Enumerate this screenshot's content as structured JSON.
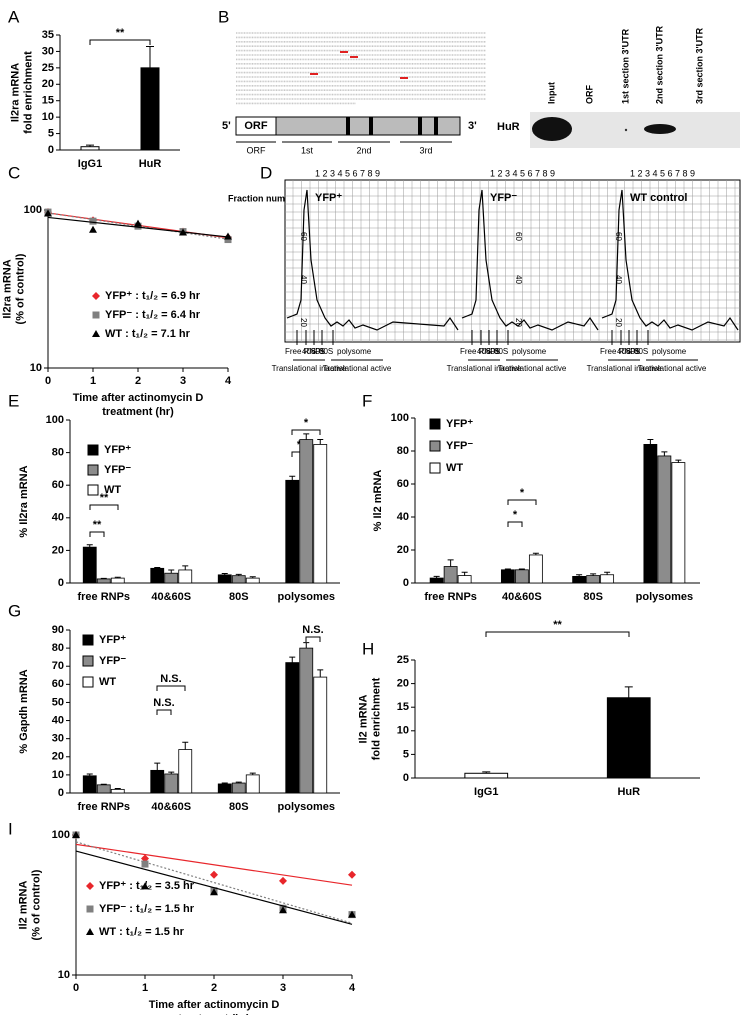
{
  "chart_data": [
    {
      "panel": "A",
      "type": "bar",
      "categories": [
        "IgG1",
        "HuR"
      ],
      "values": [
        1,
        25
      ],
      "errors": [
        0.5,
        6.5
      ],
      "colors": [
        "#ffffff",
        "#000000"
      ],
      "ylabel": [
        "Il2ra mRNA",
        "fold enrichment"
      ],
      "ylim": [
        0,
        35
      ],
      "yticks": [
        0,
        5,
        10,
        15,
        20,
        25,
        30,
        35
      ],
      "annotations": [
        "**"
      ]
    },
    {
      "panel": "C",
      "type": "scatter",
      "log_y": true,
      "trendline": true,
      "x": [
        0,
        1,
        2,
        3,
        4
      ],
      "series": [
        {
          "name": "YFP⁺ : t₁/₂ = 6.9 hr",
          "color": "#e8262b",
          "marker": "diamond",
          "values": [
            97,
            86,
            80,
            73,
            67
          ]
        },
        {
          "name": "YFP⁻ : t₁/₂ = 6.4  hr",
          "color": "#808080",
          "marker": "square",
          "values": [
            97,
            85,
            79,
            73,
            65
          ]
        },
        {
          "name": "WT : t₁/₂ = 7.1 hr",
          "color": "#000000",
          "marker": "triangle",
          "values": [
            95,
            75,
            82,
            72,
            68
          ]
        }
      ],
      "xlim": [
        0,
        4
      ],
      "xticks": [
        0,
        1,
        2,
        3,
        4
      ],
      "ylim": [
        10,
        100
      ],
      "yticks": [
        10,
        100
      ],
      "ylabel": [
        "Il2ra mRNA",
        "(% of control)"
      ],
      "xlabel": [
        "Time after actinomycin D",
        "treatment (hr)"
      ]
    },
    {
      "panel": "E",
      "type": "bar",
      "categories": [
        "free RNPs",
        "40&60S",
        "80S",
        "polysomes"
      ],
      "series": [
        {
          "name": "YFP⁺",
          "color": "#000000",
          "values": [
            22,
            9,
            5,
            63
          ],
          "errors": [
            1.5,
            0.5,
            0.8,
            2.5
          ]
        },
        {
          "name": "YFP⁻",
          "color": "#8c8c8c",
          "values": [
            2.5,
            6,
            4.5,
            88
          ],
          "errors": [
            0.3,
            2,
            0.8,
            3.5
          ]
        },
        {
          "name": "WT",
          "color": "#ffffff",
          "values": [
            3,
            8,
            3,
            85
          ],
          "errors": [
            0.5,
            2.5,
            0.8,
            3
          ]
        }
      ],
      "ylabel": [
        "% Il2ra mRNA"
      ],
      "ylim": [
        0,
        100
      ],
      "yticks": [
        0,
        20,
        40,
        60,
        80,
        100
      ],
      "annotations": [
        "**",
        "**",
        "*",
        "*"
      ]
    },
    {
      "panel": "F",
      "type": "bar",
      "categories": [
        "free RNPs",
        "40&60S",
        "80S",
        "polysomes"
      ],
      "series": [
        {
          "name": "YFP⁺",
          "color": "#000000",
          "values": [
            3,
            8,
            4,
            84
          ],
          "errors": [
            1,
            0.5,
            1,
            3
          ]
        },
        {
          "name": "YFP⁻",
          "color": "#8c8c8c",
          "values": [
            10,
            8,
            4.5,
            77
          ],
          "errors": [
            4,
            0.5,
            1,
            2.5
          ]
        },
        {
          "name": "WT",
          "color": "#ffffff",
          "values": [
            4.5,
            17,
            5,
            73
          ],
          "errors": [
            2,
            1,
            1.5,
            1.5
          ]
        }
      ],
      "ylabel": [
        "% Il2 mRNA"
      ],
      "ylim": [
        0,
        100
      ],
      "yticks": [
        0,
        20,
        40,
        60,
        80,
        100
      ],
      "annotations": [
        "*",
        "*"
      ]
    },
    {
      "panel": "G",
      "type": "bar",
      "categories": [
        "free RNPs",
        "40&60S",
        "80S",
        "polysomes"
      ],
      "series": [
        {
          "name": "YFP⁺",
          "color": "#000000",
          "values": [
            9.5,
            12.5,
            5,
            72
          ],
          "errors": [
            1,
            4,
            0.5,
            3
          ]
        },
        {
          "name": "YFP⁻",
          "color": "#8c8c8c",
          "values": [
            4.5,
            10.5,
            5.5,
            80
          ],
          "errors": [
            0.3,
            1,
            0.5,
            3
          ]
        },
        {
          "name": "WT",
          "color": "#ffffff",
          "values": [
            2,
            24,
            10,
            64
          ],
          "errors": [
            0.5,
            4,
            1,
            4
          ]
        }
      ],
      "ylabel": [
        "% Gapdh mRNA"
      ],
      "ylim": [
        0,
        90
      ],
      "yticks": [
        0,
        10,
        20,
        30,
        40,
        50,
        60,
        70,
        80,
        90
      ],
      "annotations": [
        "N.S.",
        "N.S.",
        "N.S."
      ]
    },
    {
      "panel": "H",
      "type": "bar",
      "categories": [
        "IgG1",
        "HuR"
      ],
      "values": [
        1,
        17
      ],
      "errors": [
        0.3,
        2.3
      ],
      "colors": [
        "#ffffff",
        "#000000"
      ],
      "ylabel": [
        "Il2 mRNA",
        "fold enrichment"
      ],
      "ylim": [
        0,
        25
      ],
      "yticks": [
        0,
        5,
        10,
        15,
        20,
        25
      ],
      "annotations": [
        "**"
      ]
    },
    {
      "panel": "I",
      "type": "scatter",
      "log_y": true,
      "trendline": true,
      "x": [
        0,
        1,
        2,
        3,
        4
      ],
      "series": [
        {
          "name": "YFP⁺ : t₁/₂ = 3.5 hr",
          "color": "#e8262b",
          "marker": "diamond",
          "values": [
            100,
            68,
            52,
            47,
            52
          ]
        },
        {
          "name": "YFP⁻ : t₁/₂ = 1.5 hr",
          "color": "#808080",
          "marker": "square",
          "values": [
            100,
            62,
            40,
            30,
            27
          ]
        },
        {
          "name": "WT : t₁/₂ = 1.5 hr",
          "color": "#000000",
          "marker": "triangle",
          "values": [
            100,
            43,
            39,
            29,
            27
          ]
        }
      ],
      "xlim": [
        0,
        4
      ],
      "xticks": [
        0,
        1,
        2,
        3,
        4
      ],
      "ylim": [
        10,
        100
      ],
      "yticks": [
        10,
        100
      ],
      "ylabel": [
        "Il2 mRNA",
        "(% of control)"
      ],
      "xlabel": [
        "Time after actinomycin D",
        "treatment (hr)"
      ]
    }
  ],
  "diagrams": {
    "B": {
      "panel": "B",
      "five_prime": "5'",
      "three_prime": "3'",
      "orf": "ORF",
      "segments": [
        "ORF",
        "1st",
        "2nd",
        "3rd"
      ],
      "protein": "HuR",
      "lanes": [
        "Input",
        "ORF",
        "1st section 3'UTR",
        "2nd section 3'UTR",
        "3rd section 3'UTR"
      ]
    },
    "D": {
      "panel": "D",
      "fraction_label": "Fraction number",
      "fractions": "1 2 3 4 5 6 7 8 9",
      "profiles": [
        "YFP⁺",
        "YFP⁻",
        "WT control"
      ],
      "grid_numbers": [
        "60",
        "40",
        "20"
      ],
      "peaks": [
        "Free RNPs",
        "40S",
        "60S",
        "80S",
        "polysome"
      ],
      "groups": [
        "Translational inactive",
        "Translational active"
      ]
    }
  }
}
